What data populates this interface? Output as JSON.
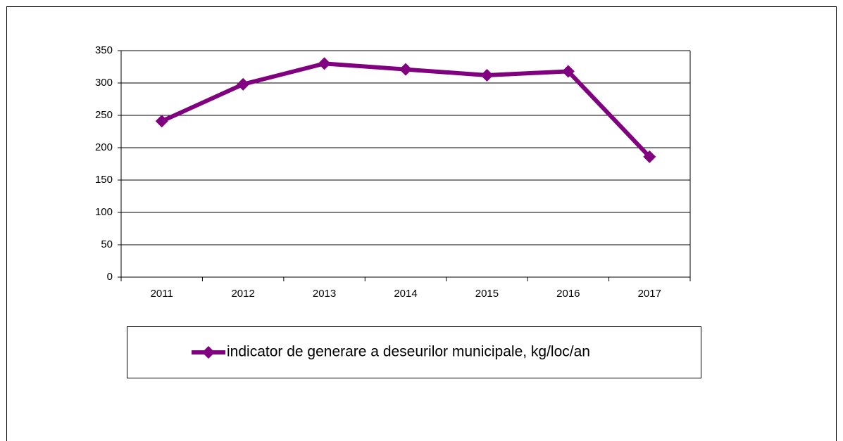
{
  "chart_data": {
    "type": "line",
    "categories": [
      "2011",
      "2012",
      "2013",
      "2014",
      "2015",
      "2016",
      "2017"
    ],
    "series": [
      {
        "name": "indicator de generare a deseurilor municipale, kg/loc/an",
        "color": "#800080",
        "values": [
          241,
          298,
          330,
          321,
          312,
          318,
          186
        ]
      }
    ],
    "ylim": [
      0,
      350
    ],
    "yticks": [
      0,
      50,
      100,
      150,
      200,
      250,
      300,
      350
    ],
    "grid": true,
    "legend": "bottom"
  }
}
